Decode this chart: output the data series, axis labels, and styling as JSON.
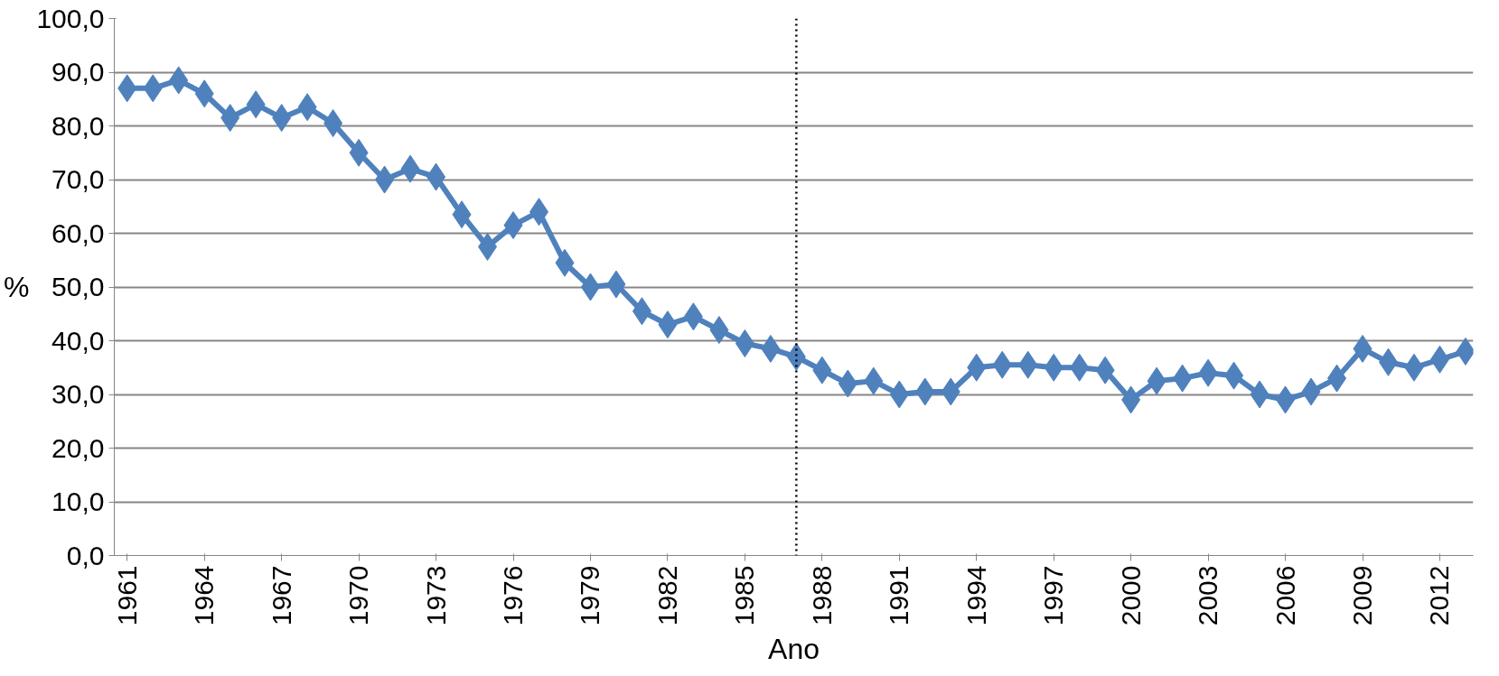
{
  "chart_data": {
    "type": "line",
    "xlabel": "Ano",
    "ylabel": "%",
    "x": [
      1961,
      1962,
      1963,
      1964,
      1965,
      1966,
      1967,
      1968,
      1969,
      1970,
      1971,
      1972,
      1973,
      1974,
      1975,
      1976,
      1977,
      1978,
      1979,
      1980,
      1981,
      1982,
      1983,
      1984,
      1985,
      1986,
      1987,
      1988,
      1989,
      1990,
      1991,
      1992,
      1993,
      1994,
      1995,
      1996,
      1997,
      1998,
      1999,
      2000,
      2001,
      2002,
      2003,
      2004,
      2005,
      2006,
      2007,
      2008,
      2009,
      2010,
      2011,
      2012,
      2013
    ],
    "series": [
      {
        "color": "#4f81bd",
        "values": [
          87,
          87,
          88.5,
          86,
          81.5,
          84,
          81.5,
          83.5,
          80.5,
          75,
          70,
          72,
          70.5,
          63.5,
          57.5,
          61.5,
          64,
          54.5,
          50,
          50.5,
          45.5,
          43,
          44.5,
          42,
          39.5,
          38.5,
          37,
          34.5,
          32,
          32.5,
          30,
          30.5,
          30.5,
          35,
          35.5,
          35.5,
          35,
          35,
          34.5,
          29,
          32.5,
          33,
          34,
          33.5,
          30,
          29,
          30.5,
          33,
          38.5,
          36,
          35,
          36.5,
          38
        ]
      }
    ],
    "xlim": [
      1960.5,
      2013.3
    ],
    "xticks": [
      1961,
      1964,
      1967,
      1970,
      1973,
      1976,
      1979,
      1982,
      1985,
      1988,
      1991,
      1994,
      1997,
      2000,
      2003,
      2006,
      2009,
      2012
    ],
    "ylim": [
      0,
      100
    ],
    "yticks": [
      {
        "value": 0,
        "label": "0,0"
      },
      {
        "value": 10,
        "label": "10,0"
      },
      {
        "value": 20,
        "label": "20,0"
      },
      {
        "value": 30,
        "label": "30,0"
      },
      {
        "value": 40,
        "label": "40,0"
      },
      {
        "value": 50,
        "label": "50,0"
      },
      {
        "value": 60,
        "label": "60,0"
      },
      {
        "value": 70,
        "label": "70,0"
      },
      {
        "value": 80,
        "label": "80,0"
      },
      {
        "value": 90,
        "label": "90,0"
      },
      {
        "value": 100,
        "label": "100,0"
      }
    ],
    "ref_lines": [
      {
        "axis": "x",
        "value": 1987,
        "color": "#000000",
        "line_style": "dotted"
      }
    ],
    "grid": "y",
    "marker": "diamond",
    "line_style": "solid"
  }
}
